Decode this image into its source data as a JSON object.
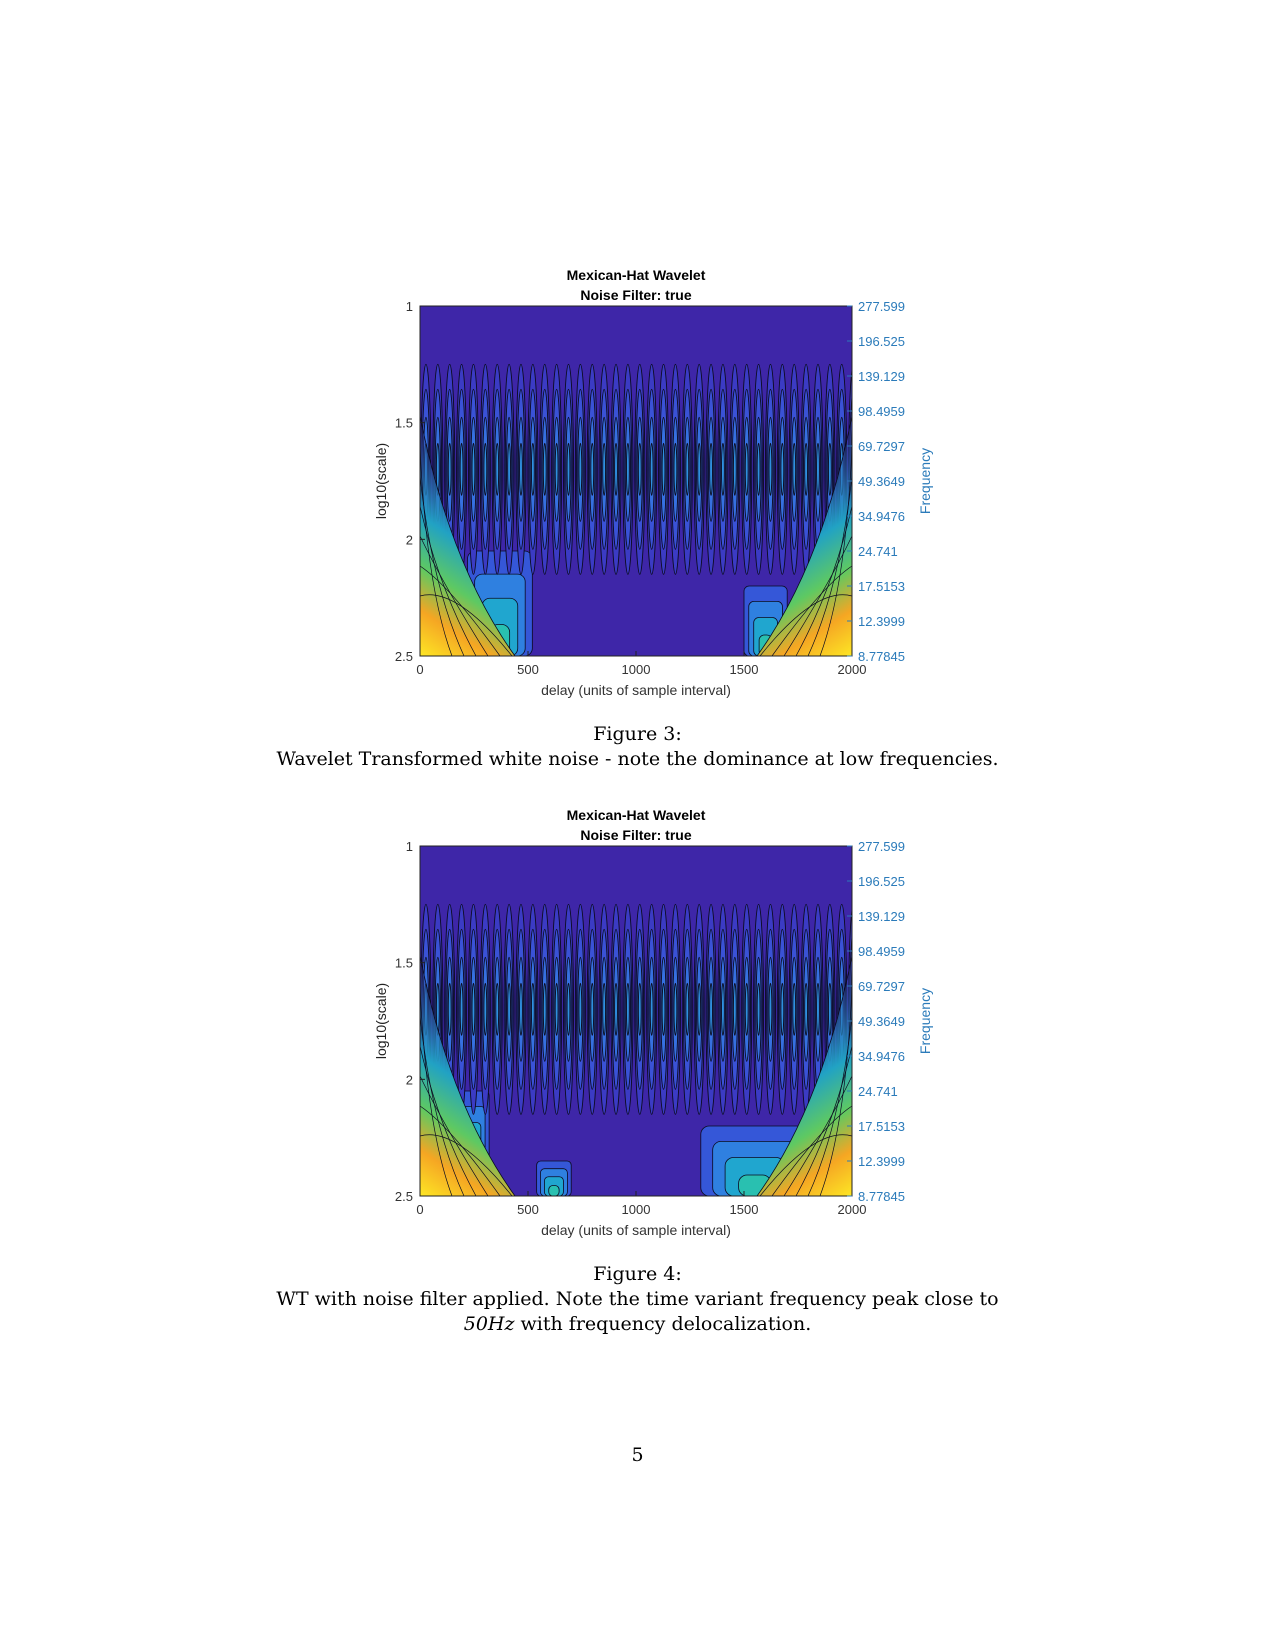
{
  "figures": [
    {
      "caption_label": "Figure 3:",
      "caption_lines": [
        "Wavelet Transformed white noise - note the dominance at low frequencies."
      ],
      "chart_data": {
        "type": "heatmap",
        "subtype": "filled-contour",
        "title": "Mexican-Hat Wavelet",
        "subtitle": "Noise Filter: true",
        "xlabel": "delay (units of sample interval)",
        "ylabel": "log10(scale)",
        "y2label": "Frequency",
        "xlim": [
          0,
          2000
        ],
        "ylim": [
          1,
          2.5
        ],
        "y_reversed": true,
        "xticks": [
          "0",
          "500",
          "1000",
          "1500",
          "2000"
        ],
        "yticks": [
          "1",
          "1.5",
          "2",
          "2.5"
        ],
        "y2ticks": [
          "277.599",
          "196.525",
          "139.129",
          "98.4959",
          "69.7297",
          "49.3649",
          "34.9476",
          "24.741",
          "17.5153",
          "12.3999",
          "8.77845"
        ],
        "colormap": "parula",
        "band": {
          "center_log10_scale": 1.7,
          "period_samples": 55
        },
        "low_frequency_regions": [
          {
            "x": [
              220,
              520
            ],
            "y": [
              2.05,
              2.5
            ]
          },
          {
            "x": [
              1500,
              1700
            ],
            "y": [
              2.2,
              2.5
            ]
          }
        ],
        "edge_energy": [
          "left",
          "right"
        ]
      }
    },
    {
      "caption_label": "Figure 4:",
      "caption_lines": [
        "WT with noise filter applied. Note the time variant frequency peak close to",
        "with frequency delocalization."
      ],
      "caption_math": "50Hz",
      "chart_data": {
        "type": "heatmap",
        "subtype": "filled-contour",
        "title": "Mexican-Hat Wavelet",
        "subtitle": "Noise Filter: true",
        "xlabel": "delay (units of sample interval)",
        "ylabel": "log10(scale)",
        "y2label": "Frequency",
        "xlim": [
          0,
          2000
        ],
        "ylim": [
          1,
          2.5
        ],
        "y_reversed": true,
        "xticks": [
          "0",
          "500",
          "1000",
          "1500",
          "2000"
        ],
        "yticks": [
          "1",
          "1.5",
          "2",
          "2.5"
        ],
        "y2ticks": [
          "277.599",
          "196.525",
          "139.129",
          "98.4959",
          "69.7297",
          "49.3649",
          "34.9476",
          "24.741",
          "17.5153",
          "12.3999",
          "8.77845"
        ],
        "colormap": "parula",
        "band": {
          "center_log10_scale": 1.7,
          "period_samples": 55
        },
        "low_frequency_regions": [
          {
            "x": [
              150,
              320
            ],
            "y": [
              2.05,
              2.35
            ]
          },
          {
            "x": [
              540,
              700
            ],
            "y": [
              2.35,
              2.5
            ]
          },
          {
            "x": [
              1300,
              1800
            ],
            "y": [
              2.2,
              2.5
            ]
          }
        ],
        "edge_energy": [
          "left",
          "right"
        ]
      }
    }
  ],
  "page_number": "5",
  "colors": {
    "background_field": "#3e26a8",
    "frequency_axis": "#2b7bba",
    "contour_line": "#0b0b20"
  }
}
